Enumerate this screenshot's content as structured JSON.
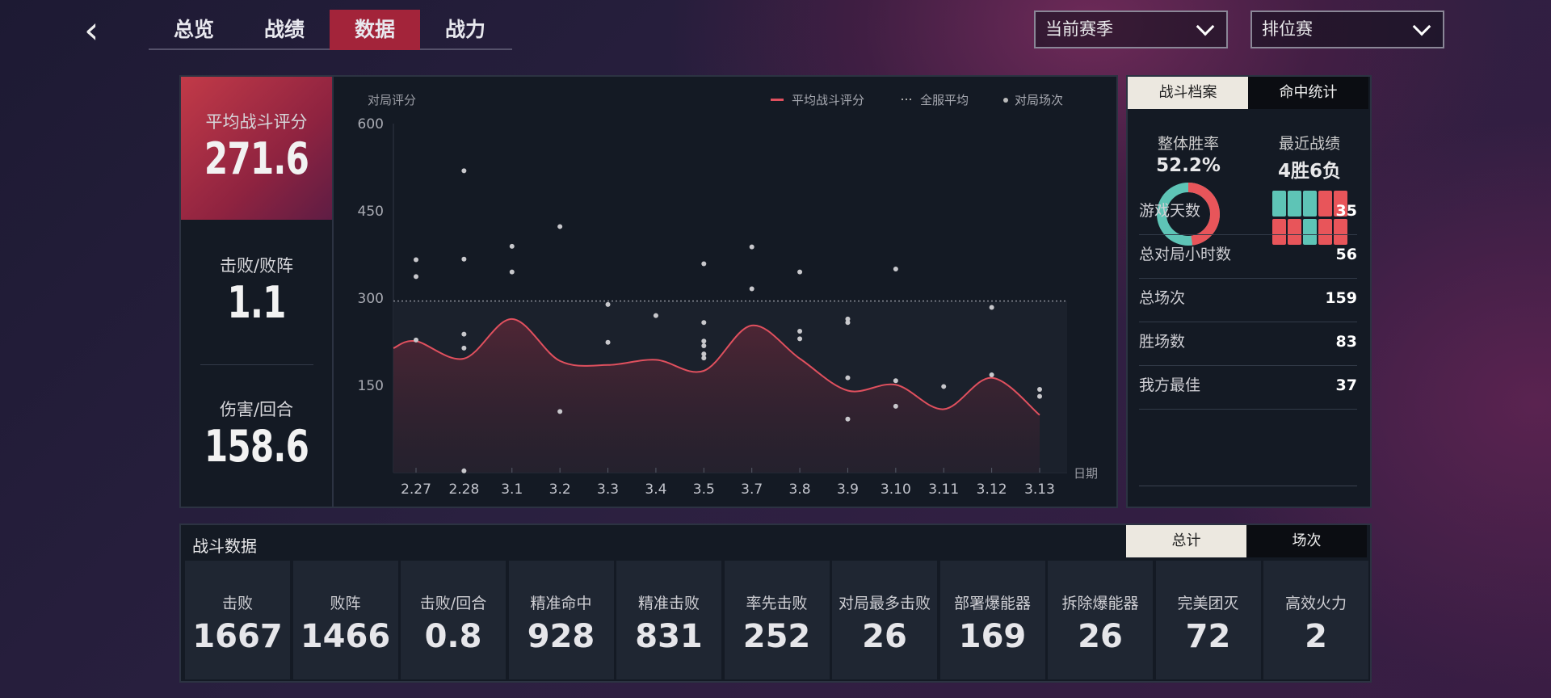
{
  "nav": {
    "tabs": [
      {
        "label": "总览"
      },
      {
        "label": "战绩"
      },
      {
        "label": "数据"
      },
      {
        "label": "战力"
      }
    ],
    "active": "数据",
    "season_select": "当前赛季",
    "mode_select": "排位赛"
  },
  "left_stats": [
    {
      "label": "平均战斗评分",
      "value": "271.6"
    },
    {
      "label": "击败/败阵",
      "value": "1.1"
    },
    {
      "label": "伤害/回合",
      "value": "158.6"
    }
  ],
  "chart_data": {
    "type": "line",
    "ylabel": "对局评分",
    "xlabel": "日期",
    "ylim": [
      0,
      600
    ],
    "yticks": [
      150,
      300,
      450,
      600
    ],
    "categories": [
      "2.27",
      "2.28",
      "3.1",
      "3.2",
      "3.3",
      "3.4",
      "3.5",
      "3.7",
      "3.8",
      "3.9",
      "3.10",
      "3.11",
      "3.12",
      "3.13"
    ],
    "legend": [
      "平均战斗评分",
      "全服平均",
      "对局场次"
    ],
    "series": [
      {
        "name": "平均战斗评分",
        "color": "#e0505e",
        "values": [
          226,
          196,
          264,
          192,
          185,
          194,
          175,
          253,
          196,
          141,
          151,
          109,
          163,
          99
        ]
      }
    ],
    "server_average": 295,
    "scatter": [
      {
        "x": "2.27",
        "y": [
          366,
          337,
          228
        ]
      },
      {
        "x": "2.28",
        "y": [
          519,
          367,
          238,
          214,
          3
        ]
      },
      {
        "x": "3.1",
        "y": [
          389,
          345
        ]
      },
      {
        "x": "3.2",
        "y": [
          423,
          105
        ]
      },
      {
        "x": "3.3",
        "y": [
          289,
          224
        ]
      },
      {
        "x": "3.4",
        "y": [
          270
        ]
      },
      {
        "x": "3.5",
        "y": [
          359,
          258,
          226,
          218,
          204,
          197
        ]
      },
      {
        "x": "3.7",
        "y": [
          388,
          316
        ]
      },
      {
        "x": "3.8",
        "y": [
          345,
          243,
          230
        ]
      },
      {
        "x": "3.9",
        "y": [
          264,
          258,
          163,
          92
        ]
      },
      {
        "x": "3.10",
        "y": [
          350,
          158,
          114
        ]
      },
      {
        "x": "3.11",
        "y": [
          148
        ]
      },
      {
        "x": "3.12",
        "y": [
          284,
          168
        ]
      },
      {
        "x": "3.13",
        "y": [
          143,
          131
        ]
      }
    ],
    "legend_placement": "top-right"
  },
  "profile": {
    "tabs": [
      "战斗档案",
      "命中统计"
    ],
    "winrate_label": "整体胜率",
    "winrate": "52.2%",
    "winrate_value": 52.2,
    "recent_label": "最近战绩",
    "recent": "4胜6负",
    "recent_results": [
      "W",
      "W",
      "W",
      "L",
      "L",
      "L",
      "L",
      "W",
      "L",
      "L"
    ],
    "win_color": "#5ec4b6",
    "loss_color": "#e8555a",
    "rows": [
      {
        "label": "游戏天数",
        "value": "35"
      },
      {
        "label": "总对局小时数",
        "value": "56"
      },
      {
        "label": "总场次",
        "value": "159"
      },
      {
        "label": "胜场数",
        "value": "83"
      },
      {
        "label": "我方最佳",
        "value": "37"
      }
    ]
  },
  "combat": {
    "title": "战斗数据",
    "tabs": [
      "总计",
      "场次"
    ],
    "stats": [
      {
        "label": "击败",
        "value": "1667"
      },
      {
        "label": "败阵",
        "value": "1466"
      },
      {
        "label": "击败/回合",
        "value": "0.8"
      },
      {
        "label": "精准命中",
        "value": "928"
      },
      {
        "label": "精准击败",
        "value": "831"
      },
      {
        "label": "率先击败",
        "value": "252"
      },
      {
        "label": "对局最多击败",
        "value": "26"
      },
      {
        "label": "部署爆能器",
        "value": "169"
      },
      {
        "label": "拆除爆能器",
        "value": "26"
      },
      {
        "label": "完美团灭",
        "value": "72"
      },
      {
        "label": "高效火力",
        "value": "2"
      }
    ]
  }
}
